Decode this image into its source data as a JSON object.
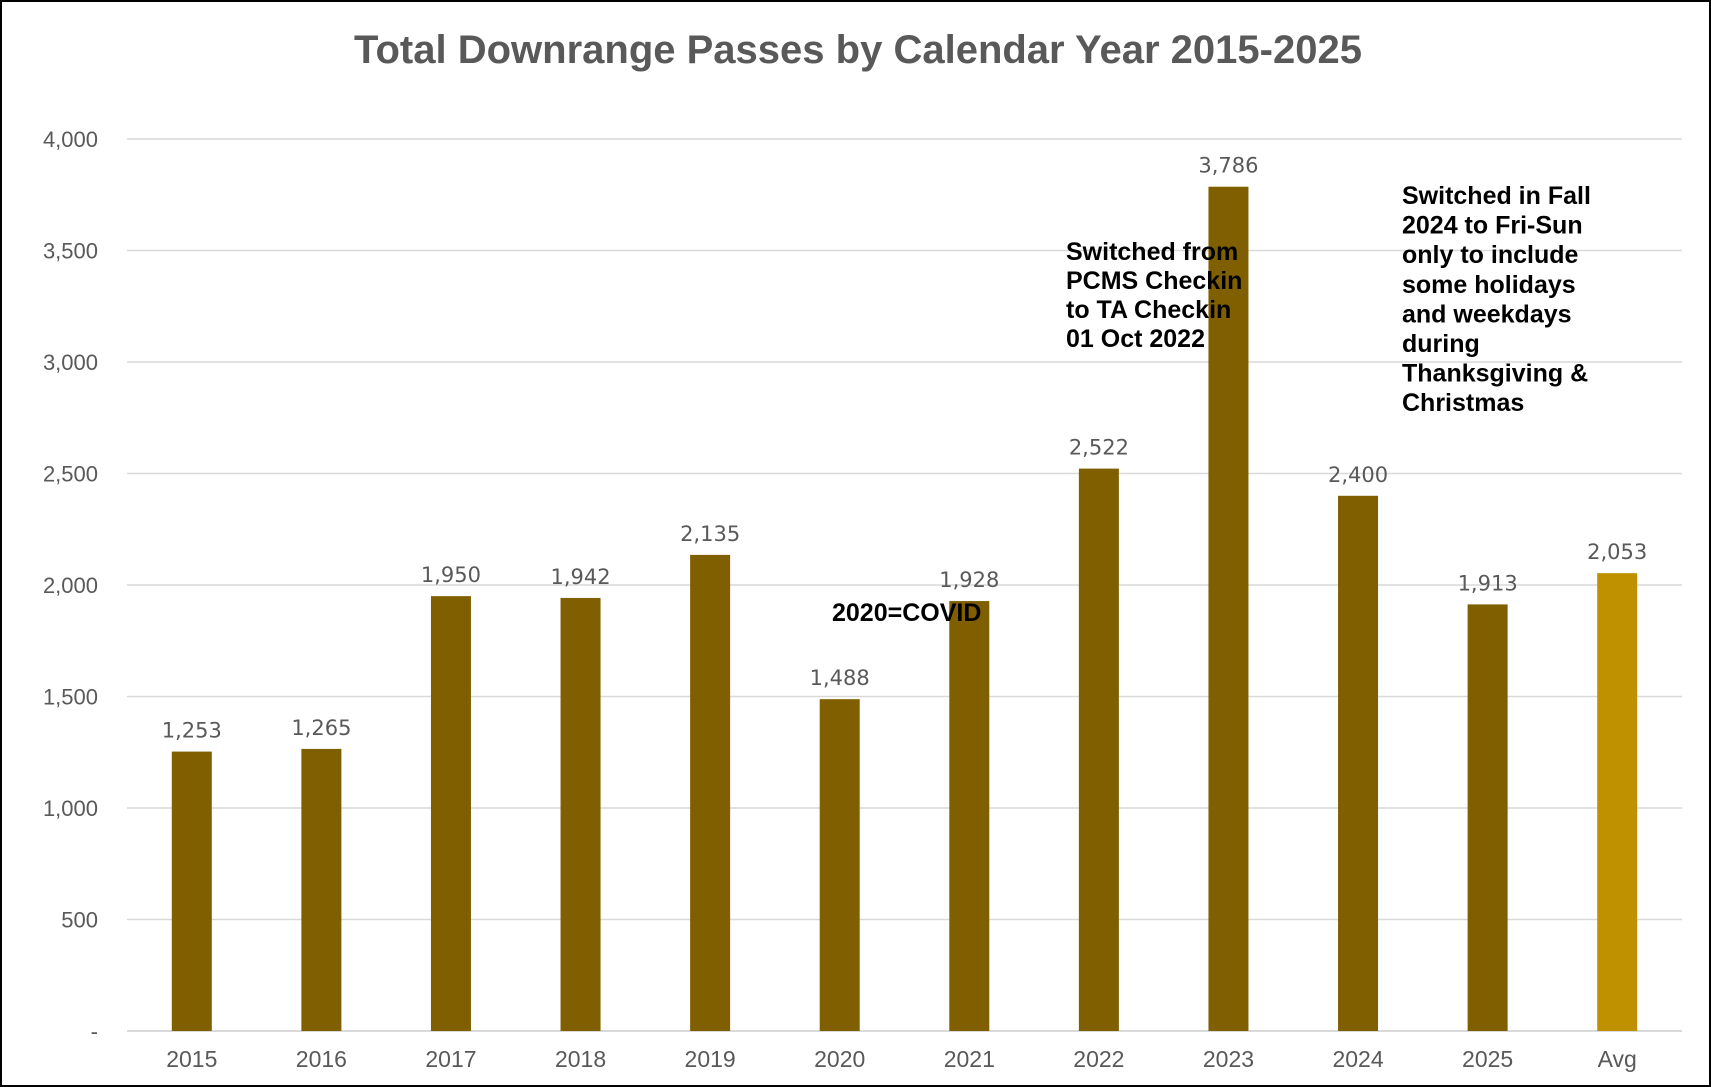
{
  "chart_data": {
    "type": "bar",
    "title": "Total Downrange Passes by Calendar Year 2015-2025",
    "xlabel": "",
    "ylabel": "",
    "categories": [
      "2015",
      "2016",
      "2017",
      "2018",
      "2019",
      "2020",
      "2021",
      "2022",
      "2023",
      "2024",
      "2025",
      "Avg"
    ],
    "values": [
      1253,
      1265,
      1950,
      1942,
      2135,
      1488,
      1928,
      2522,
      3786,
      2400,
      1913,
      2053
    ],
    "data_labels": [
      "1,253",
      "1,265",
      "1,950",
      "1,942",
      "2,135",
      "1,488",
      "1,928",
      "2,522",
      "3,786",
      "2,400",
      "1,913",
      "2,053"
    ],
    "ylim": [
      0,
      4000
    ],
    "y_ticks": [
      0,
      500,
      1000,
      1500,
      2000,
      2500,
      3000,
      3500,
      4000
    ],
    "y_tick_labels": [
      "-",
      "500",
      "1,000",
      "1,500",
      "2,000",
      "2,500",
      "3,000",
      "3,500",
      "4,000"
    ],
    "grid": true,
    "legend": "none",
    "colors": {
      "bar": "#7f5f00",
      "bar_highlight": "#bf9000",
      "highlight_category": "Avg",
      "text": "#595959",
      "gridline": "#d9d9d9"
    },
    "annotations": [
      {
        "text": "2020=COVID",
        "category": "2020",
        "lines": [
          "2020=COVID"
        ]
      },
      {
        "text": "Switched from PCMS Checkin to TA Checkin 01 Oct 2022",
        "category": "2022",
        "lines": [
          "Switched from",
          "PCMS Checkin",
          "to TA Checkin",
          "01 Oct 2022"
        ]
      },
      {
        "text": "Switched in Fall 2024 to Fri-Sun only to include some holidays and weekdays during Thanksgiving & Christmas",
        "category": "2024",
        "lines": [
          "Switched in Fall",
          "2024 to Fri-Sun",
          "only to include",
          "some holidays",
          "and weekdays",
          "during",
          "Thanksgiving &",
          "Christmas"
        ]
      }
    ]
  }
}
